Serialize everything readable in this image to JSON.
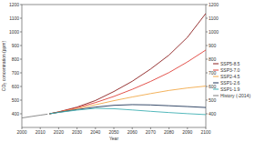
{
  "chart_data": {
    "type": "line",
    "x_label": "Year",
    "y_label": "CO₂ concentration (ppm)",
    "x": [
      2000,
      2005,
      2010,
      2014,
      2015,
      2020,
      2030,
      2040,
      2050,
      2060,
      2070,
      2080,
      2090,
      2100
    ],
    "xlim": [
      2000,
      2100
    ],
    "xticks": [
      2000,
      2010,
      2020,
      2030,
      2040,
      2050,
      2060,
      2070,
      2080,
      2090,
      2100
    ],
    "ylim": [
      300,
      1200
    ],
    "yticks": [
      400,
      500,
      600,
      700,
      800,
      900,
      1000,
      1100,
      1200
    ],
    "grid": false,
    "legend": "right",
    "series": [
      {
        "name": "SSP5-8.5",
        "color": "#8b1e1e",
        "values": [
          null,
          null,
          null,
          null,
          400,
          414,
          449,
          497,
          563,
          638,
          728,
          830,
          960,
          1135
        ]
      },
      {
        "name": "SSP3-7.0",
        "color": "#e0413a",
        "values": [
          null,
          null,
          null,
          null,
          400,
          413,
          444,
          482,
          527,
          579,
          637,
          702,
          780,
          867
        ]
      },
      {
        "name": "SSP2-4.5",
        "color": "#f2a94a",
        "values": [
          null,
          null,
          null,
          null,
          400,
          412,
          437,
          466,
          496,
          523,
          548,
          571,
          589,
          603
        ]
      },
      {
        "name": "SSP1-2.6",
        "color": "#1f3558",
        "values": [
          null,
          null,
          null,
          null,
          400,
          411,
          431,
          449,
          462,
          467,
          465,
          459,
          453,
          446
        ]
      },
      {
        "name": "SSP1-1.9",
        "color": "#3fb0b3",
        "values": [
          null,
          null,
          null,
          null,
          400,
          410,
          427,
          440,
          437,
          428,
          418,
          409,
          401,
          394
        ]
      },
      {
        "name": "History (-2014)",
        "color": "#7f7f7f",
        "values": [
          369.7,
          379.8,
          389.9,
          397.5,
          null,
          null,
          null,
          null,
          null,
          null,
          null,
          null,
          null,
          null
        ]
      }
    ]
  }
}
